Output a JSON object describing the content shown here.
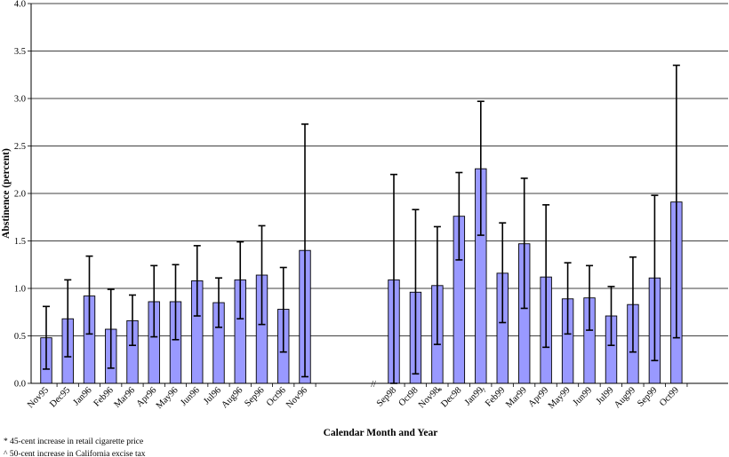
{
  "chart_data": {
    "type": "bar",
    "xlabel": "Calendar Month and Year",
    "ylabel": "Abstinence (percent)",
    "ylim": [
      0,
      4.0
    ],
    "yticks": [
      "0.0",
      "0.5",
      "1.0",
      "1.5",
      "2.0",
      "2.5",
      "3.0",
      "3.5",
      "4.0"
    ],
    "grid": true,
    "bar_color": "#9999ff",
    "axis_break_mark": "//",
    "categories": [
      "Nov95",
      "Dec95",
      "Jan96",
      "Feb96",
      "Mar96",
      "Apr96",
      "May96",
      "Jun96",
      "Jul96",
      "Aug96",
      "Sep96",
      "Oct96",
      "Nov96",
      "Sep98",
      "Oct98",
      "Nov98",
      "Dec98",
      "Jan99",
      "Feb99",
      "Mar99",
      "Apr99",
      "May99",
      "Jun99",
      "Jul99",
      "Aug99",
      "Sep99",
      "Oct99"
    ],
    "values": [
      0.48,
      0.68,
      0.92,
      0.57,
      0.66,
      0.86,
      0.86,
      1.08,
      0.85,
      1.09,
      1.14,
      0.78,
      1.4,
      1.09,
      0.96,
      1.03,
      1.76,
      2.26,
      1.16,
      1.47,
      1.12,
      0.89,
      0.9,
      0.71,
      0.83,
      1.11,
      1.91
    ],
    "error_low": [
      0.15,
      0.28,
      0.52,
      0.16,
      0.4,
      0.49,
      0.46,
      0.71,
      0.59,
      0.68,
      0.62,
      0.33,
      0.07,
      0.0,
      0.1,
      0.41,
      1.3,
      1.56,
      0.64,
      0.79,
      0.38,
      0.52,
      0.56,
      0.4,
      0.33,
      0.24,
      0.48
    ],
    "error_high": [
      0.81,
      1.09,
      1.34,
      0.99,
      0.93,
      1.24,
      1.25,
      1.45,
      1.11,
      1.49,
      1.66,
      1.22,
      2.73,
      2.2,
      1.83,
      1.65,
      2.22,
      2.97,
      1.69,
      2.16,
      1.88,
      1.27,
      1.24,
      1.02,
      1.33,
      1.98,
      3.35
    ],
    "markers": [
      {
        "category": "Nov98",
        "symbol": "*"
      },
      {
        "category": "Jan99",
        "symbol": "^"
      }
    ],
    "annotations": [
      "* 45-cent increase in retail cigarette price",
      "^ 50-cent increase in California excise tax"
    ]
  }
}
